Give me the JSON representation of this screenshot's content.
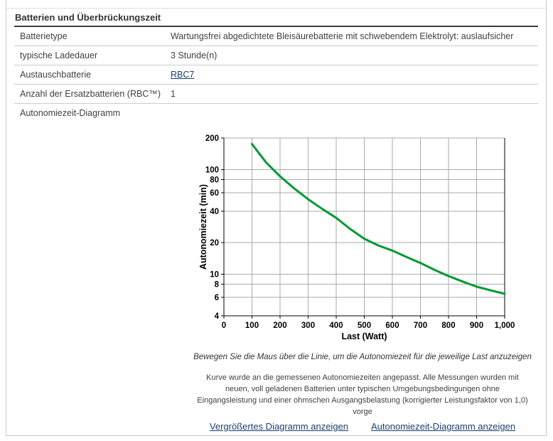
{
  "section": {
    "title": "Batterien und Überbrückungszeit"
  },
  "table": {
    "rows": [
      {
        "label": "Batterietype",
        "value": "Wartungsfrei abgedichtete Bleisäurebatterie mit schwebendem Elektrolyt: auslaufsicher"
      },
      {
        "label": "typische Ladedauer",
        "value": "3 Stunde(n)"
      },
      {
        "label": "Austauschbatterie",
        "value": "RBC7"
      },
      {
        "label": "Anzahl der Ersatzbatterien (RBC™)",
        "value": "1"
      },
      {
        "label": "Autonomiezeit-Diagramm",
        "value": ""
      }
    ]
  },
  "chart_data": {
    "type": "line",
    "xlabel": "Last (Watt)",
    "ylabel": "Autonomiezeit (min)",
    "xlim": [
      0,
      1000
    ],
    "ylim": [
      4,
      200
    ],
    "y_scale": "log",
    "grid": true,
    "x_ticks": [
      0,
      100,
      200,
      300,
      400,
      500,
      600,
      700,
      800,
      900,
      1000
    ],
    "x_tick_labels": [
      "0",
      "100",
      "200",
      "300",
      "400",
      "500",
      "600",
      "700",
      "800",
      "900",
      "1,000"
    ],
    "y_ticks": [
      200,
      100,
      80,
      60,
      40,
      20,
      10,
      8,
      6,
      4
    ],
    "y_tick_labels": [
      "200",
      "100",
      "80",
      "60",
      "40",
      "20",
      "10",
      "8",
      "6",
      "4"
    ],
    "line_color": "#009933",
    "grid_color": "#aaaaaa",
    "series": [
      {
        "name": "Autonomiezeit",
        "x": [
          100,
          150,
          200,
          250,
          300,
          350,
          400,
          450,
          500,
          550,
          600,
          650,
          700,
          750,
          800,
          850,
          900,
          950,
          1000
        ],
        "y": [
          175,
          117,
          86,
          66,
          52,
          42,
          34.5,
          27,
          21.8,
          18.8,
          16.8,
          14.6,
          12.8,
          11,
          9.6,
          8.5,
          7.6,
          7.0,
          6.5
        ]
      }
    ]
  },
  "captions": {
    "hover_hint": "Bewegen Sie die Maus über die Linie, um die Autonomiezeit für die jeweilige Last anzuzeigen",
    "disclaimer_lines": [
      "Kurve wurde an die gemessenen Autonomiezeiten angepasst. Alle Messungen wurden mit",
      "neuen, voll geladenen Batterien unter typischen Umgebungsbedingungen ohne",
      "Eingangsleistung und einer ohmschen Ausgangsbelastung (korrigierter Leistungsfaktor von 1,0)",
      "vorge"
    ]
  },
  "links": {
    "enlarge": "Vergrößertes Diagramm anzeigen",
    "runtime_chart": "Autonomiezeit-Diagramm anzeigen"
  },
  "colors": {
    "link": "#1a3e6e",
    "curve": "#009933",
    "grid": "#aaaaaa",
    "body_text": "#404040",
    "separator": "#cccccc"
  }
}
